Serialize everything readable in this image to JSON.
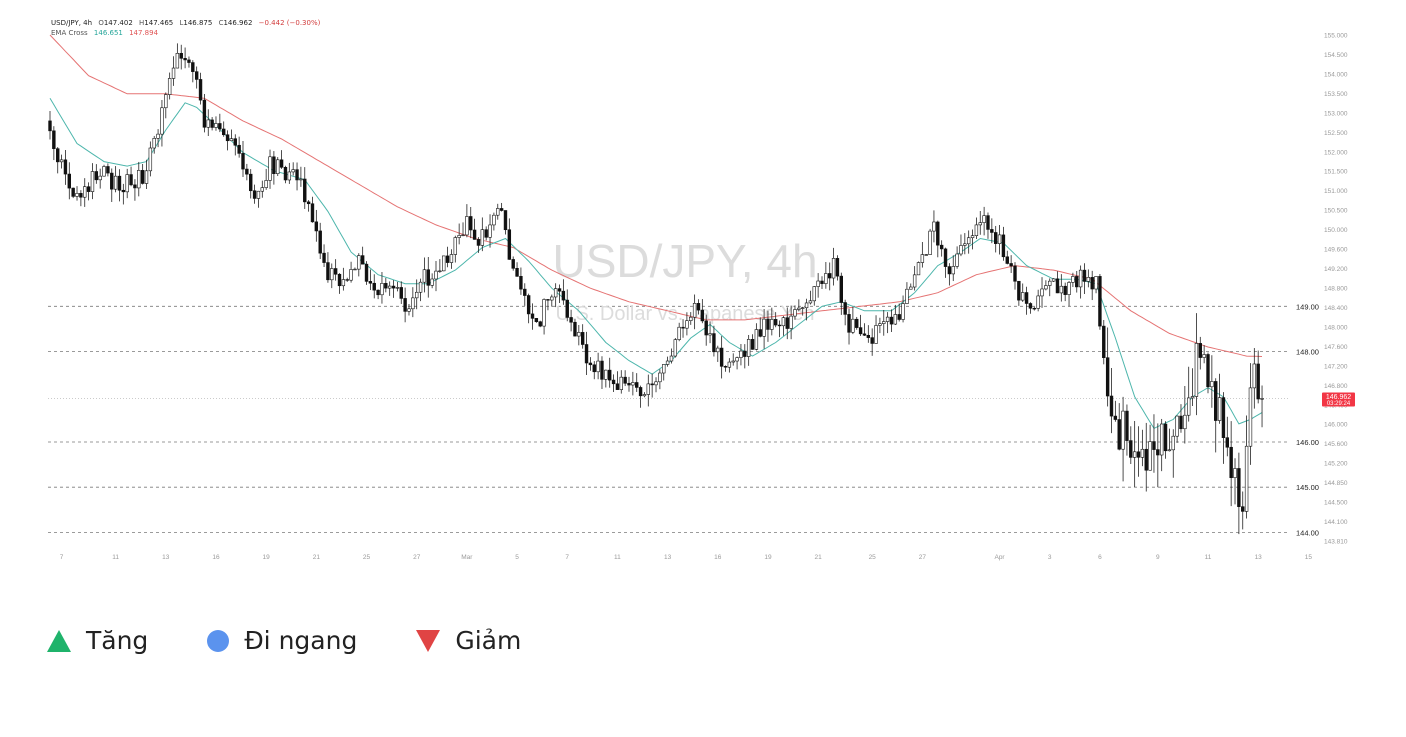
{
  "header": {
    "symbol_line": "USD/JPY, 4h",
    "o_label": "O",
    "o_value": "147.402",
    "h_label": "H",
    "h_value": "147.465",
    "l_label": "L",
    "l_value": "146.875",
    "c_label": "C",
    "c_value": "146.962",
    "change": "−0.442 (−0.30%)",
    "indicator_label": "EMA Cross",
    "ema_fast_value": "146.651",
    "ema_slow_value": "147.894"
  },
  "watermark": {
    "title": "USD/JPY, 4h",
    "subtitle": "U.S. Dollar vs. Japanese Yen"
  },
  "price_marker": {
    "price": "146.962",
    "countdown": "03:29:24"
  },
  "legend": [
    {
      "label": "Tăng",
      "shape": "triangle-up",
      "color": "#1fb36b"
    },
    {
      "label": "Đi ngang",
      "shape": "circle",
      "color": "#5b93ee"
    },
    {
      "label": "Giảm",
      "shape": "triangle-down",
      "color": "#e04444"
    }
  ],
  "chart_data": {
    "type": "candlestick",
    "title": "USD/JPY, 4h",
    "ylim": [
      143.81,
      155.0
    ],
    "y_ticks": [
      "155.000",
      "154.500",
      "154.000",
      "153.500",
      "153.000",
      "152.500",
      "152.000",
      "151.500",
      "151.000",
      "150.500",
      "150.000",
      "149.600",
      "149.200",
      "148.800",
      "148.400",
      "148.000",
      "147.600",
      "147.200",
      "146.800",
      "146.400",
      "146.000",
      "145.600",
      "145.200",
      "144.850",
      "144.500",
      "144.100",
      "143.810"
    ],
    "levels": [
      {
        "price": 149.0,
        "label": "149.00"
      },
      {
        "price": 148.0,
        "label": "148.00"
      },
      {
        "price": 146.0,
        "label": "146.00"
      },
      {
        "price": 145.0,
        "label": "145.00"
      },
      {
        "price": 144.0,
        "label": "144.00"
      }
    ],
    "current_price": 146.962,
    "x_ticks": [
      {
        "label": "7",
        "bar": 3
      },
      {
        "label": "11",
        "bar": 17
      },
      {
        "label": "13",
        "bar": 30
      },
      {
        "label": "16",
        "bar": 43
      },
      {
        "label": "19",
        "bar": 56
      },
      {
        "label": "21",
        "bar": 69
      },
      {
        "label": "25",
        "bar": 82
      },
      {
        "label": "27",
        "bar": 95
      },
      {
        "label": "Mar",
        "bar": 108
      },
      {
        "label": "5",
        "bar": 121
      },
      {
        "label": "7",
        "bar": 134
      },
      {
        "label": "11",
        "bar": 147
      },
      {
        "label": "13",
        "bar": 160
      },
      {
        "label": "16",
        "bar": 173
      },
      {
        "label": "19",
        "bar": 186
      },
      {
        "label": "21",
        "bar": 199
      },
      {
        "label": "25",
        "bar": 213
      },
      {
        "label": "27",
        "bar": 226
      },
      {
        "label": "Apr",
        "bar": 246
      },
      {
        "label": "3",
        "bar": 259
      },
      {
        "label": "6",
        "bar": 272
      },
      {
        "label": "9",
        "bar": 287
      },
      {
        "label": "11",
        "bar": 300
      },
      {
        "label": "13",
        "bar": 313
      },
      {
        "label": "15",
        "bar": 326
      }
    ],
    "bar_count": 295,
    "close_path": [
      [
        0,
        152.9
      ],
      [
        6,
        151.4
      ],
      [
        13,
        152.0
      ],
      [
        18,
        151.6
      ],
      [
        24,
        151.9
      ],
      [
        29,
        153.3
      ],
      [
        33,
        154.6
      ],
      [
        37,
        154.2
      ],
      [
        40,
        153.1
      ],
      [
        48,
        152.6
      ],
      [
        53,
        151.5
      ],
      [
        57,
        152.1
      ],
      [
        63,
        151.9
      ],
      [
        67,
        151.4
      ],
      [
        71,
        149.8
      ],
      [
        75,
        149.6
      ],
      [
        80,
        150.0
      ],
      [
        84,
        149.2
      ],
      [
        88,
        149.5
      ],
      [
        93,
        149.0
      ],
      [
        97,
        149.6
      ],
      [
        103,
        150.0
      ],
      [
        108,
        150.8
      ],
      [
        113,
        150.4
      ],
      [
        116,
        151.3
      ],
      [
        120,
        149.7
      ],
      [
        126,
        148.6
      ],
      [
        131,
        149.5
      ],
      [
        135,
        148.7
      ],
      [
        140,
        147.7
      ],
      [
        145,
        147.4
      ],
      [
        150,
        147.2
      ],
      [
        154,
        146.9
      ],
      [
        158,
        147.6
      ],
      [
        162,
        148.2
      ],
      [
        167,
        149.1
      ],
      [
        172,
        148.1
      ],
      [
        176,
        147.6
      ],
      [
        180,
        148.0
      ],
      [
        185,
        148.5
      ],
      [
        190,
        148.6
      ],
      [
        195,
        149.0
      ],
      [
        200,
        149.5
      ],
      [
        203,
        150.0
      ],
      [
        207,
        148.6
      ],
      [
        212,
        148.3
      ],
      [
        216,
        148.6
      ],
      [
        221,
        149.0
      ],
      [
        225,
        149.8
      ],
      [
        229,
        150.7
      ],
      [
        233,
        149.7
      ],
      [
        237,
        150.3
      ],
      [
        241,
        151.0
      ],
      [
        246,
        150.4
      ],
      [
        250,
        149.5
      ],
      [
        254,
        148.8
      ],
      [
        258,
        149.6
      ],
      [
        263,
        149.3
      ],
      [
        267,
        149.7
      ],
      [
        271,
        149.5
      ],
      [
        273,
        148.0
      ],
      [
        276,
        146.3
      ],
      [
        281,
        146.0
      ],
      [
        285,
        145.6
      ],
      [
        289,
        146.1
      ],
      [
        293,
        146.5
      ],
      [
        297,
        147.8
      ],
      [
        301,
        147.0
      ],
      [
        305,
        146.1
      ],
      [
        307,
        145.0
      ],
      [
        309,
        144.5
      ],
      [
        311,
        147.4
      ],
      [
        312,
        148.0
      ],
      [
        313,
        147.3
      ],
      [
        314,
        146.96
      ]
    ],
    "ema_fast_path": [
      [
        0,
        153.6
      ],
      [
        7,
        152.6
      ],
      [
        14,
        152.2
      ],
      [
        20,
        152.1
      ],
      [
        25,
        152.2
      ],
      [
        30,
        152.9
      ],
      [
        35,
        153.5
      ],
      [
        38,
        153.4
      ],
      [
        43,
        153.0
      ],
      [
        50,
        152.4
      ],
      [
        58,
        152.0
      ],
      [
        66,
        151.8
      ],
      [
        72,
        151.1
      ],
      [
        78,
        150.2
      ],
      [
        85,
        149.7
      ],
      [
        92,
        149.5
      ],
      [
        98,
        149.5
      ],
      [
        105,
        149.8
      ],
      [
        112,
        150.3
      ],
      [
        118,
        150.5
      ],
      [
        124,
        150.0
      ],
      [
        130,
        149.4
      ],
      [
        137,
        148.9
      ],
      [
        144,
        148.2
      ],
      [
        150,
        147.8
      ],
      [
        156,
        147.5
      ],
      [
        161,
        147.8
      ],
      [
        166,
        148.3
      ],
      [
        171,
        148.6
      ],
      [
        176,
        148.2
      ],
      [
        182,
        147.9
      ],
      [
        188,
        148.2
      ],
      [
        194,
        148.6
      ],
      [
        200,
        149.0
      ],
      [
        205,
        149.1
      ],
      [
        211,
        148.9
      ],
      [
        218,
        148.9
      ],
      [
        224,
        149.3
      ],
      [
        230,
        149.9
      ],
      [
        236,
        150.2
      ],
      [
        241,
        150.5
      ],
      [
        247,
        150.4
      ],
      [
        253,
        149.9
      ],
      [
        260,
        149.6
      ],
      [
        266,
        149.6
      ],
      [
        271,
        149.5
      ],
      [
        276,
        148.3
      ],
      [
        281,
        147.0
      ],
      [
        286,
        146.3
      ],
      [
        291,
        146.5
      ],
      [
        296,
        147.0
      ],
      [
        300,
        147.2
      ],
      [
        304,
        147.0
      ],
      [
        308,
        146.4
      ],
      [
        311,
        146.5
      ],
      [
        314,
        146.65
      ]
    ],
    "ema_slow_path": [
      [
        0,
        155.0
      ],
      [
        10,
        154.1
      ],
      [
        20,
        153.7
      ],
      [
        30,
        153.7
      ],
      [
        40,
        153.6
      ],
      [
        50,
        153.1
      ],
      [
        60,
        152.7
      ],
      [
        70,
        152.2
      ],
      [
        80,
        151.7
      ],
      [
        90,
        151.2
      ],
      [
        100,
        150.8
      ],
      [
        110,
        150.5
      ],
      [
        120,
        150.3
      ],
      [
        130,
        149.8
      ],
      [
        140,
        149.4
      ],
      [
        150,
        149.1
      ],
      [
        160,
        148.9
      ],
      [
        170,
        148.7
      ],
      [
        180,
        148.7
      ],
      [
        190,
        148.8
      ],
      [
        200,
        148.9
      ],
      [
        210,
        149.0
      ],
      [
        220,
        149.1
      ],
      [
        230,
        149.3
      ],
      [
        240,
        149.7
      ],
      [
        250,
        149.9
      ],
      [
        260,
        149.8
      ],
      [
        270,
        149.6
      ],
      [
        280,
        148.9
      ],
      [
        290,
        148.4
      ],
      [
        300,
        148.1
      ],
      [
        310,
        147.9
      ],
      [
        314,
        147.89
      ]
    ],
    "series": [
      {
        "name": "EMA Cross",
        "color_fast": "#4db6ac",
        "color_slow": "#e57373"
      }
    ],
    "colors": {
      "candle_up": "#ffffff",
      "candle_down": "#111111",
      "wick": "#222222",
      "marker": "#f23645"
    }
  }
}
